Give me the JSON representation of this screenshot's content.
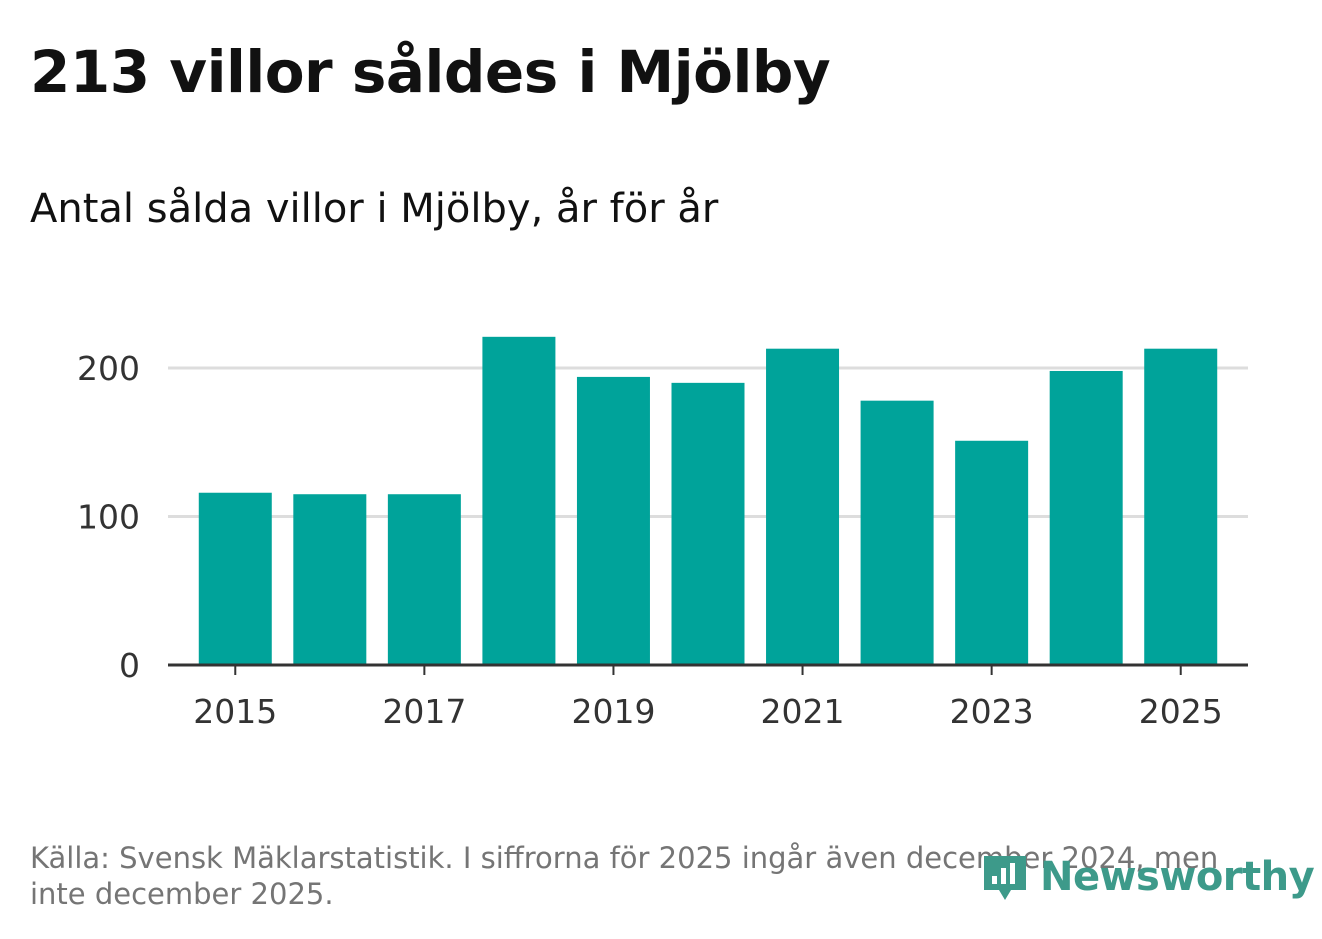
{
  "title": "213 villor såldes i Mjölby",
  "subtitle": "Antal sålda villor i Mjölby, år för år",
  "source": "Källa: Svensk Mäklarstatistik. I siffrorna för 2025 ingår även december 2024, men inte december 2025.",
  "logo": {
    "text": "Newsworthy",
    "icon": "newsworthy-logo-icon"
  },
  "colors": {
    "bar": "#00a39a",
    "grid": "#dddddd",
    "axis": "#333333",
    "text": "#111111",
    "muted": "#757575",
    "logo": "#3d9a8a"
  },
  "chart_data": {
    "type": "bar",
    "title": "Antal sålda villor i Mjölby, år för år",
    "xlabel": "",
    "ylabel": "",
    "categories": [
      "2015",
      "2016",
      "2017",
      "2018",
      "2019",
      "2020",
      "2021",
      "2022",
      "2023",
      "2024",
      "2025"
    ],
    "values": [
      116,
      115,
      115,
      221,
      194,
      190,
      213,
      178,
      151,
      198,
      213
    ],
    "xticks": [
      "2015",
      "2017",
      "2019",
      "2021",
      "2023",
      "2025"
    ],
    "yticks": [
      0,
      100,
      200
    ],
    "ylim": [
      0,
      230
    ],
    "grid": true,
    "legend": "none"
  }
}
